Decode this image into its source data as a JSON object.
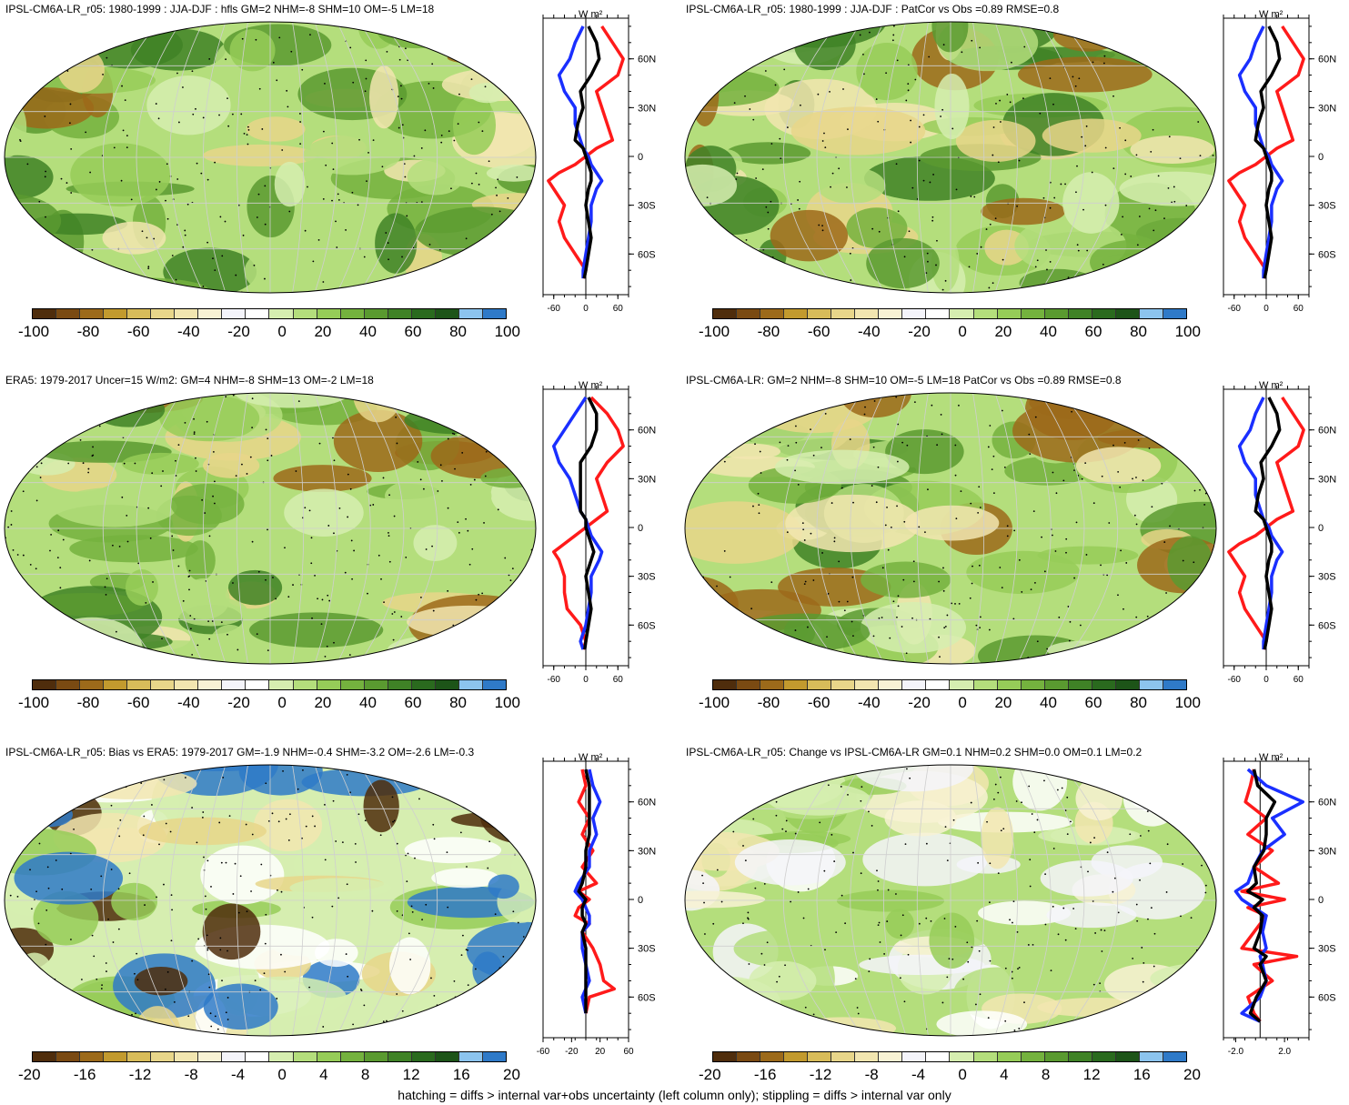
{
  "footnote": "hatching = diffs > internal var+obs uncertainty (left column only); stippling = diffs > internal var only",
  "colorbar_colors": [
    "#4f2d0c",
    "#7a4a12",
    "#9c6a1a",
    "#c29a2e",
    "#d8bc5a",
    "#e8d68a",
    "#f2e6b0",
    "#f8f2d4",
    "#f4f4fa",
    "#ffffff",
    "#d6eeb0",
    "#b4de7c",
    "#96cc58",
    "#74b23e",
    "#5a9a30",
    "#3f8226",
    "#2a6a1e",
    "#1d5418",
    "#8cc4ee",
    "#2f7ac8"
  ],
  "panels": [
    {
      "id": "top-left",
      "title": "IPSL-CM6A-LR_r05: 1980-1999 : JJA-DJF : hfls GM=2 NHM=-8 SHM=10 OM=-5 LM=18",
      "cbar_labels": [
        "-100",
        "-80",
        "-60",
        "-40",
        "-20",
        "0",
        "20",
        "40",
        "60",
        "80",
        "100"
      ],
      "zonal": {
        "unit": "W m²",
        "xticks": [
          "-60",
          "0",
          "60"
        ],
        "yticks": [
          "60N",
          "30N",
          "0",
          "30S",
          "60S"
        ],
        "xlim": [
          -80,
          80
        ],
        "lat": [
          80,
          70,
          60,
          50,
          40,
          30,
          20,
          10,
          5,
          0,
          -5,
          -10,
          -15,
          -20,
          -30,
          -40,
          -50,
          -60,
          -70,
          -75
        ],
        "land": [
          30,
          50,
          70,
          60,
          20,
          30,
          40,
          50,
          20,
          0,
          -20,
          -50,
          -70,
          -60,
          -40,
          -50,
          -40,
          -20,
          0,
          -5
        ],
        "ocean": [
          -5,
          -20,
          -30,
          -50,
          -40,
          -20,
          -20,
          -10,
          -5,
          5,
          10,
          20,
          30,
          20,
          10,
          10,
          5,
          0,
          -5,
          -5
        ],
        "global": [
          5,
          20,
          25,
          10,
          -10,
          -5,
          -15,
          -20,
          -5,
          0,
          5,
          10,
          10,
          5,
          0,
          5,
          10,
          5,
          0,
          -3
        ]
      }
    },
    {
      "id": "top-right",
      "title": "IPSL-CM6A-LR_r05: 1980-1999 : JJA-DJF : PatCor vs Obs =0.89 RMSE=0.8",
      "cbar_labels": [
        "-100",
        "-80",
        "-60",
        "-40",
        "-20",
        "0",
        "20",
        "40",
        "60",
        "80",
        "100"
      ],
      "zonal": {
        "unit": "W m²",
        "xticks": [
          "-60",
          "0",
          "60"
        ],
        "yticks": [
          "60N",
          "30N",
          "0",
          "30S",
          "60S"
        ],
        "xlim": [
          -80,
          80
        ],
        "lat": [
          80,
          70,
          60,
          50,
          40,
          30,
          20,
          10,
          5,
          0,
          -5,
          -10,
          -15,
          -20,
          -30,
          -40,
          -50,
          -60,
          -70,
          -75
        ],
        "land": [
          30,
          50,
          70,
          60,
          20,
          30,
          40,
          50,
          20,
          0,
          -20,
          -50,
          -70,
          -60,
          -40,
          -50,
          -40,
          -20,
          0,
          -5
        ],
        "ocean": [
          -5,
          -20,
          -30,
          -50,
          -40,
          -20,
          -20,
          -10,
          -5,
          5,
          10,
          20,
          30,
          20,
          10,
          10,
          5,
          0,
          -5,
          -5
        ],
        "global": [
          5,
          20,
          25,
          10,
          -10,
          -5,
          -15,
          -20,
          -5,
          0,
          5,
          10,
          10,
          5,
          0,
          5,
          10,
          5,
          0,
          -3
        ]
      }
    },
    {
      "id": "middle-left",
      "title": "ERA5: 1979-2017 Uncer=15 W/m2: GM=4 NHM=-8 SHM=13 OM=-2 LM=18",
      "cbar_labels": [
        "-100",
        "-80",
        "-60",
        "-40",
        "-20",
        "0",
        "20",
        "40",
        "60",
        "80",
        "100"
      ],
      "zonal": {
        "unit": "W m²",
        "xticks": [
          "-60",
          "0",
          "60"
        ],
        "yticks": [
          "60N",
          "30N",
          "0",
          "30S",
          "60S"
        ],
        "xlim": [
          -80,
          80
        ],
        "lat": [
          80,
          70,
          60,
          50,
          40,
          30,
          20,
          10,
          5,
          0,
          -5,
          -10,
          -15,
          -20,
          -30,
          -40,
          -50,
          -60,
          -70,
          -75
        ],
        "land": [
          10,
          40,
          60,
          70,
          40,
          20,
          30,
          40,
          20,
          0,
          -20,
          -40,
          -60,
          -50,
          -40,
          -40,
          -35,
          -10,
          0,
          -5
        ],
        "ocean": [
          0,
          -20,
          -40,
          -60,
          -50,
          -30,
          -20,
          -10,
          0,
          5,
          10,
          20,
          30,
          25,
          10,
          10,
          5,
          0,
          -10,
          -5
        ],
        "global": [
          5,
          20,
          20,
          10,
          -10,
          -10,
          -10,
          -10,
          0,
          0,
          5,
          10,
          15,
          10,
          0,
          5,
          10,
          5,
          0,
          -2
        ]
      }
    },
    {
      "id": "middle-right",
      "title": "IPSL-CM6A-LR: GM=2 NHM=-8 SHM=10 OM=-5 LM=18 PatCor vs Obs =0.89 RMSE=0.8",
      "cbar_labels": [
        "-100",
        "-80",
        "-60",
        "-40",
        "-20",
        "0",
        "20",
        "40",
        "60",
        "80",
        "100"
      ],
      "zonal": {
        "unit": "W m²",
        "xticks": [
          "-60",
          "0",
          "60"
        ],
        "yticks": [
          "60N",
          "30N",
          "0",
          "30S",
          "60S"
        ],
        "xlim": [
          -80,
          80
        ],
        "lat": [
          80,
          70,
          60,
          50,
          40,
          30,
          20,
          10,
          5,
          0,
          -5,
          -10,
          -15,
          -20,
          -30,
          -40,
          -50,
          -60,
          -70,
          -75
        ],
        "land": [
          30,
          50,
          70,
          60,
          20,
          30,
          40,
          50,
          20,
          0,
          -20,
          -50,
          -70,
          -60,
          -40,
          -50,
          -40,
          -20,
          0,
          -5
        ],
        "ocean": [
          -5,
          -20,
          -30,
          -50,
          -40,
          -20,
          -20,
          -10,
          -5,
          5,
          10,
          20,
          30,
          20,
          10,
          10,
          5,
          0,
          -5,
          -5
        ],
        "global": [
          5,
          20,
          25,
          10,
          -10,
          -5,
          -15,
          -20,
          -5,
          0,
          5,
          10,
          10,
          5,
          0,
          5,
          10,
          5,
          0,
          -3
        ]
      }
    },
    {
      "id": "bottom-left",
      "title": "IPSL-CM6A-LR_r05: Bias vs ERA5: 1979-2017 GM=-1.9 NHM=-0.4 SHM=-3.2 OM=-2.6 LM=-0.3",
      "cbar_labels": [
        "-20",
        "-16",
        "-12",
        "-8",
        "-4",
        "0",
        "4",
        "8",
        "12",
        "16",
        "20"
      ],
      "zonal": {
        "unit": "W m²",
        "xticks": [
          "-60",
          "-20",
          "20",
          "60"
        ],
        "yticks": [
          "60N",
          "30N",
          "0",
          "30S",
          "60S"
        ],
        "xlim": [
          -60,
          60
        ],
        "lat": [
          80,
          70,
          60,
          50,
          40,
          30,
          20,
          10,
          5,
          0,
          -5,
          -10,
          -15,
          -20,
          -30,
          -40,
          -50,
          -55,
          -60,
          -70
        ],
        "land": [
          -5,
          0,
          -10,
          5,
          -5,
          10,
          -5,
          15,
          -10,
          5,
          -10,
          -15,
          5,
          -5,
          10,
          20,
          25,
          40,
          5,
          0
        ],
        "ocean": [
          5,
          10,
          20,
          10,
          15,
          5,
          5,
          -10,
          -15,
          -5,
          0,
          5,
          5,
          -5,
          -5,
          0,
          5,
          0,
          -5,
          0
        ],
        "global": [
          0,
          5,
          5,
          5,
          5,
          0,
          0,
          -5,
          -10,
          0,
          -5,
          -5,
          0,
          -5,
          0,
          0,
          0,
          0,
          0,
          0
        ]
      }
    },
    {
      "id": "bottom-right",
      "title": "IPSL-CM6A-LR_r05: Change vs IPSL-CM6A-LR GM=0.1 NHM=0.2 SHM=0.0 OM=0.1 LM=0.2",
      "cbar_labels": [
        "-20",
        "-16",
        "-12",
        "-8",
        "-4",
        "0",
        "4",
        "8",
        "12",
        "16",
        "20"
      ],
      "zonal": {
        "unit": "W m²",
        "xticks": [
          "-2.0",
          "2.0"
        ],
        "yticks": [
          "60N",
          "30N",
          "0",
          "30S",
          "60S"
        ],
        "xlim": [
          -3,
          4
        ],
        "lat": [
          80,
          70,
          60,
          50,
          40,
          30,
          20,
          10,
          5,
          0,
          -5,
          -10,
          -20,
          -30,
          -35,
          -40,
          -50,
          -60,
          -70,
          -75
        ],
        "land": [
          -0.5,
          -0.8,
          -1.2,
          0.5,
          -1.0,
          1.0,
          -0.5,
          1.5,
          -1.5,
          2.0,
          -1.0,
          0.5,
          -0.5,
          -1.5,
          3.0,
          -0.5,
          1.0,
          -1.0,
          -0.5,
          0
        ],
        "ocean": [
          -1.0,
          0.5,
          3.5,
          1.0,
          2.0,
          0.2,
          -0.5,
          -1.0,
          -2.0,
          -1.5,
          -0.5,
          0.5,
          0.2,
          0.5,
          0.0,
          0.2,
          0.5,
          0.0,
          -1.5,
          0
        ],
        "global": [
          -0.5,
          -0.2,
          1.2,
          0.5,
          0.5,
          0.3,
          -0.5,
          -0.3,
          -1.0,
          0.2,
          -0.5,
          0.2,
          0,
          -0.5,
          0.5,
          0.0,
          0.5,
          -0.3,
          -0.8,
          0
        ]
      }
    }
  ]
}
